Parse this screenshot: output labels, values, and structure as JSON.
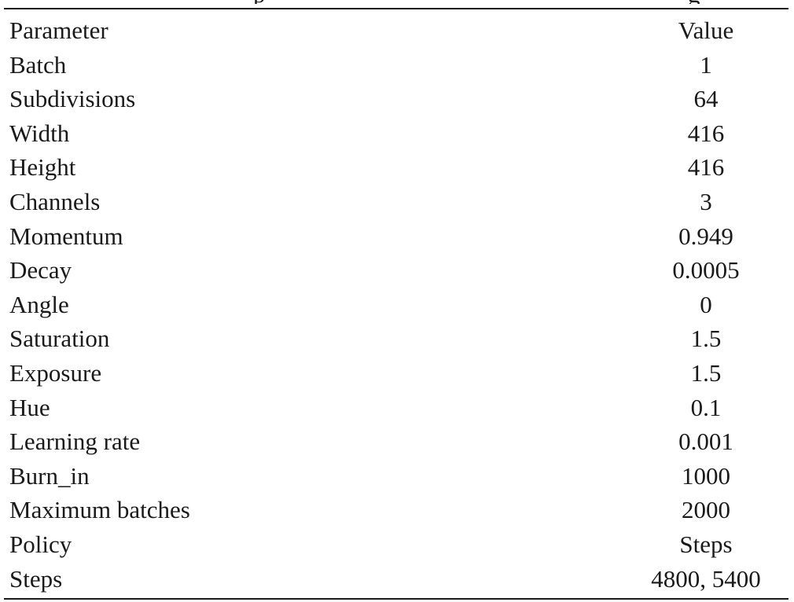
{
  "table": {
    "header": {
      "parameter": "Parameter",
      "value": "Value"
    },
    "rows": [
      {
        "parameter": "Batch",
        "value": "1"
      },
      {
        "parameter": "Subdivisions",
        "value": "64"
      },
      {
        "parameter": "Width",
        "value": "416"
      },
      {
        "parameter": "Height",
        "value": "416"
      },
      {
        "parameter": "Channels",
        "value": "3"
      },
      {
        "parameter": "Momentum",
        "value": "0.949"
      },
      {
        "parameter": "Decay",
        "value": "0.0005"
      },
      {
        "parameter": "Angle",
        "value": "0"
      },
      {
        "parameter": "Saturation",
        "value": "1.5"
      },
      {
        "parameter": "Exposure",
        "value": "1.5"
      },
      {
        "parameter": "Hue",
        "value": "0.1"
      },
      {
        "parameter": "Learning rate",
        "value": "0.001"
      },
      {
        "parameter": "Burn_in",
        "value": "1000"
      },
      {
        "parameter": "Maximum batches",
        "value": "2000"
      },
      {
        "parameter": "Policy",
        "value": "Steps"
      },
      {
        "parameter": "Steps",
        "value": "4800, 5400"
      }
    ]
  }
}
